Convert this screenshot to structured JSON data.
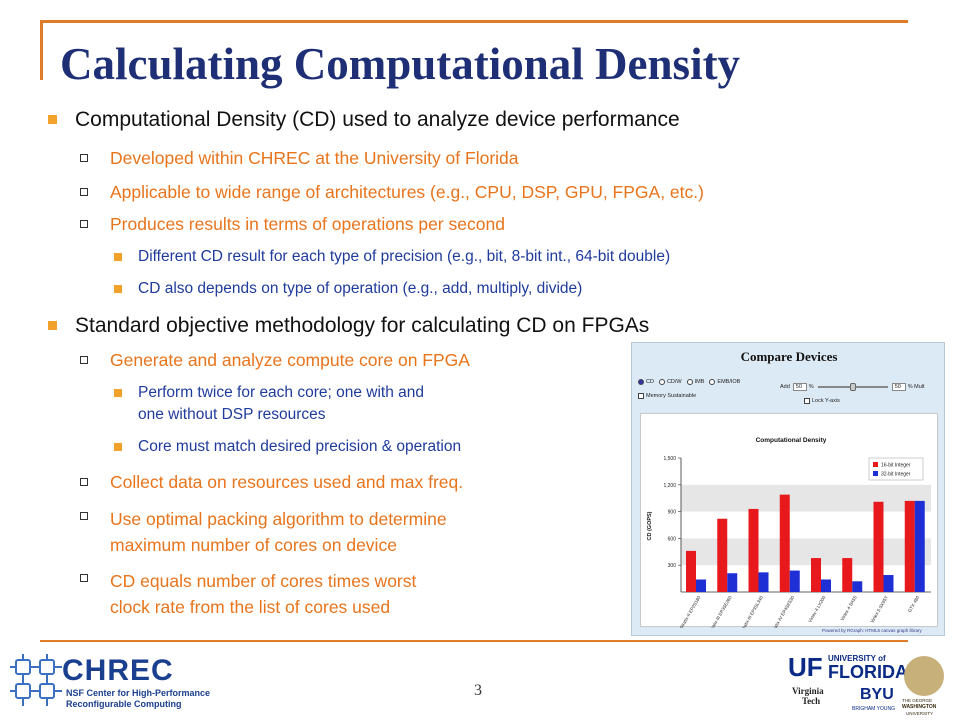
{
  "title": "Calculating Computational Density",
  "bullets": {
    "b1": "Computational Density (CD) used to analyze device performance",
    "b1_1": "Developed within CHREC at the University of Florida",
    "b1_2": "Applicable to wide range of architectures (e.g., CPU, DSP, GPU, FPGA, etc.)",
    "b1_3": "Produces results in terms of operations per second",
    "b1_3_1": "Different CD result for each type of precision (e.g., bit, 8-bit int., 64-bit double)",
    "b1_3_2": "CD also depends on type of operation (e.g., add, multiply, divide)",
    "b2": "Standard objective methodology for calculating CD on FPGAs",
    "b2_1": "Generate and analyze compute core on FPGA",
    "b2_1_1a": "Perform twice for each core; one with and",
    "b2_1_1b": "one without DSP resources",
    "b2_1_2": "Core must match desired precision & operation",
    "b2_2": "Collect data on resources used and max freq.",
    "b2_3a": "Use optimal packing algorithm to determine",
    "b2_3b": "maximum number of cores on device",
    "b2_4a": "CD equals number of cores times worst",
    "b2_4b": "clock rate from the list of cores used"
  },
  "page_number": "3",
  "panel": {
    "heading": "Compare Devices",
    "options": [
      "CD",
      "CD/W",
      "IMB",
      "EMB/IOB"
    ],
    "memory_label": "Memory Sustainable",
    "add_label": "Add",
    "add_value": "50",
    "pct": "%",
    "mult_value": "50",
    "mult_label": "% Mult",
    "lock_label": "Lock Y-axis",
    "footer": "Powered by RGraph: HTML5 canvas graph library"
  },
  "chart_data": {
    "type": "bar",
    "title": "Computational Density",
    "ylabel": "CD (GOPS)",
    "xlabel": "",
    "ylim": [
      0,
      1500
    ],
    "yticks": [
      300,
      600,
      900,
      1200,
      1500
    ],
    "yticklabels": [
      "300",
      "600",
      "900",
      "1,200",
      "1,500"
    ],
    "categories": [
      "Stratix-II EP2S180",
      "Stratix-III EP3SE260",
      "Stratix-III EP3SL340",
      "Stratix-IV EP4SE530",
      "Virtex-4 LX200",
      "Virtex-4 SX55",
      "Virtex-5 SX95T",
      "GTX 480"
    ],
    "series": [
      {
        "name": "16-bit Integer",
        "color": "#e8191d",
        "values": [
          460,
          820,
          930,
          1090,
          380,
          380,
          1010,
          1020
        ]
      },
      {
        "name": "32-bit Integer",
        "color": "#1f2fd6",
        "values": [
          140,
          210,
          220,
          240,
          140,
          120,
          190,
          1020
        ]
      }
    ],
    "legend": "top-right"
  },
  "logos": {
    "chrec_word": "CHREC",
    "chrec_sub1": "NSF Center for High-Performance",
    "chrec_sub2": "Reconfigurable Computing",
    "uf_short": "UF",
    "uf_top": "UNIVERSITY of",
    "uf_bottom": "FLORIDA",
    "vt_top": "Virginia",
    "vt_bottom": "Tech",
    "byu": "BYU",
    "byu_sub": "BRIGHAM YOUNG",
    "gw_top": "THE GEORGE",
    "gw_mid": "WASHINGTON",
    "gw_bottom": "UNIVERSITY"
  }
}
